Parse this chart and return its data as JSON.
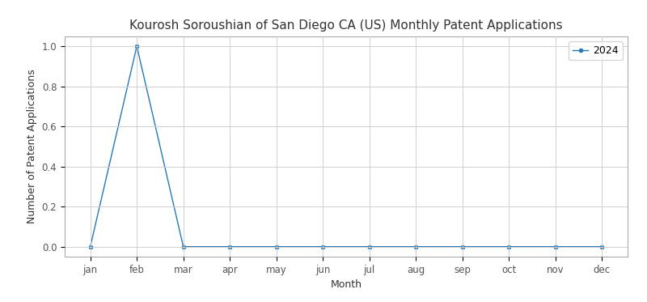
{
  "title": "Kourosh Soroushian of San Diego CA (US) Monthly Patent Applications",
  "xlabel": "Month",
  "ylabel": "Number of Patent Applications",
  "months": [
    "jan",
    "feb",
    "mar",
    "apr",
    "may",
    "jun",
    "jul",
    "aug",
    "sep",
    "oct",
    "nov",
    "dec"
  ],
  "values": [
    0,
    1,
    0,
    0,
    0,
    0,
    0,
    0,
    0,
    0,
    0,
    0
  ],
  "line_color": "#2878b5",
  "marker": "o",
  "marker_size": 3,
  "legend_label": "2024",
  "ylim": [
    -0.05,
    1.05
  ],
  "yticks": [
    0.0,
    0.2,
    0.4,
    0.6,
    0.8,
    1.0
  ],
  "grid": true,
  "grid_color": "#d0d0d0",
  "grid_linestyle": "-",
  "background_color": "#ffffff",
  "title_fontsize": 11,
  "axis_label_fontsize": 9,
  "tick_fontsize": 8.5,
  "legend_fontsize": 9,
  "linewidth": 1.0
}
